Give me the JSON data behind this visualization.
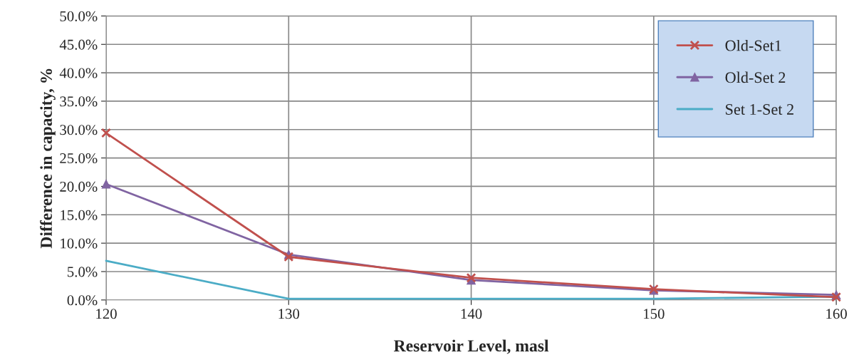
{
  "chart_data": {
    "type": "line",
    "xlabel": "Reservoir Level, masl",
    "ylabel": "Difference in capacity, %",
    "x": [
      120,
      130,
      140,
      150,
      160
    ],
    "series": [
      {
        "name": "Old-Set1",
        "color": "#c0504d",
        "marker": "cross",
        "values": [
          29.4,
          7.6,
          3.9,
          1.9,
          0.5
        ]
      },
      {
        "name": "Old-Set 2",
        "color": "#8064a2",
        "marker": "triangle",
        "values": [
          20.4,
          8.0,
          3.5,
          1.7,
          0.9
        ]
      },
      {
        "name": "Set 1-Set 2",
        "color": "#4bacc6",
        "marker": "none",
        "values": [
          6.9,
          0.2,
          0.2,
          0.2,
          0.6
        ]
      }
    ],
    "xlim": [
      120,
      160
    ],
    "xticks": [
      120,
      130,
      140,
      150,
      160
    ],
    "ylim": [
      0,
      50
    ],
    "yticks": [
      {
        "value": 0,
        "label": "0.0%"
      },
      {
        "value": 5,
        "label": "5.0%"
      },
      {
        "value": 10,
        "label": "10.0%"
      },
      {
        "value": 15,
        "label": "15.0%"
      },
      {
        "value": 20,
        "label": "20.0%"
      },
      {
        "value": 25,
        "label": "25.0%"
      },
      {
        "value": 30,
        "label": "30.0%"
      },
      {
        "value": 35,
        "label": "35.0%"
      },
      {
        "value": 40,
        "label": "40.0%"
      },
      {
        "value": 45,
        "label": "45.0%"
      },
      {
        "value": 50,
        "label": "50.0%"
      }
    ],
    "grid": true,
    "legend": "top right",
    "line_style": "solid"
  }
}
